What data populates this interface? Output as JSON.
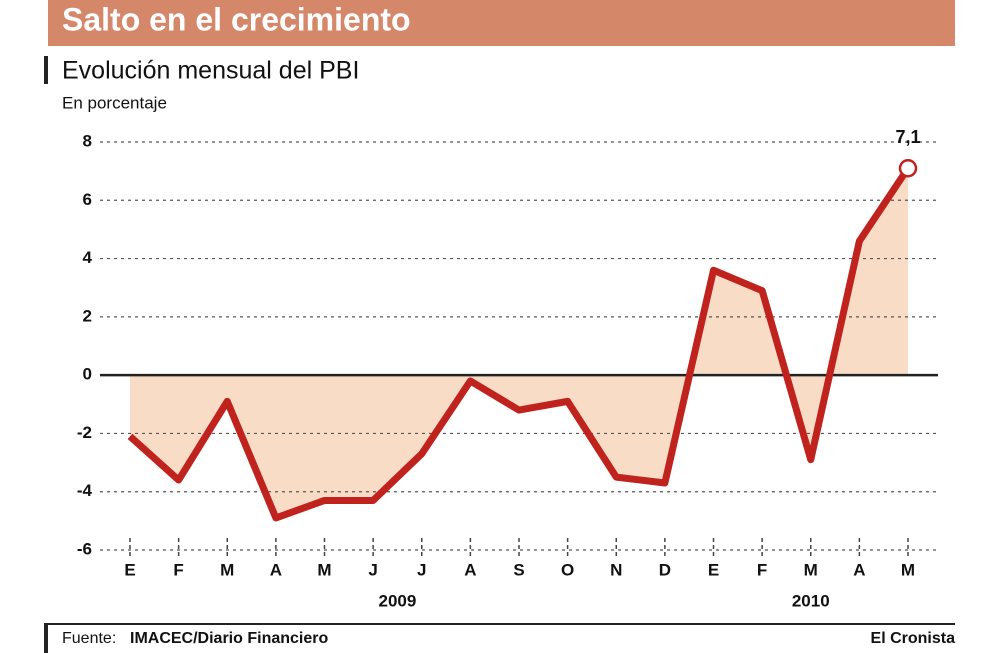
{
  "chart_data": {
    "type": "line",
    "title": "Salto en el crecimiento",
    "subtitle": "Evolución mensual del PBI",
    "y_label": "En porcentaje",
    "categories": [
      "E",
      "F",
      "M",
      "A",
      "M",
      "J",
      "J",
      "A",
      "S",
      "O",
      "N",
      "D",
      "E",
      "F",
      "M",
      "A",
      "M"
    ],
    "groups": [
      {
        "label": "2009",
        "span": 12
      },
      {
        "label": "2010",
        "span": 5
      }
    ],
    "values": [
      -2.1,
      -3.6,
      -0.9,
      -4.9,
      -4.3,
      -4.3,
      -2.7,
      -0.2,
      -1.2,
      -0.9,
      -3.5,
      -3.7,
      3.6,
      2.9,
      -2.9,
      4.6,
      7.1
    ],
    "value_labels": [
      null,
      null,
      null,
      null,
      null,
      null,
      null,
      null,
      null,
      null,
      null,
      null,
      null,
      null,
      null,
      null,
      "7,1"
    ],
    "color": "#c0231d",
    "fill_color": "#f8dcc6",
    "ylim": [
      -6,
      8
    ],
    "yticks": [
      -6,
      -4,
      -2,
      0,
      2,
      4,
      6,
      8
    ],
    "grid": true,
    "source_label": "Fuente:",
    "source": "IMACEC/Diario Financiero",
    "brand": "El Cronista"
  }
}
